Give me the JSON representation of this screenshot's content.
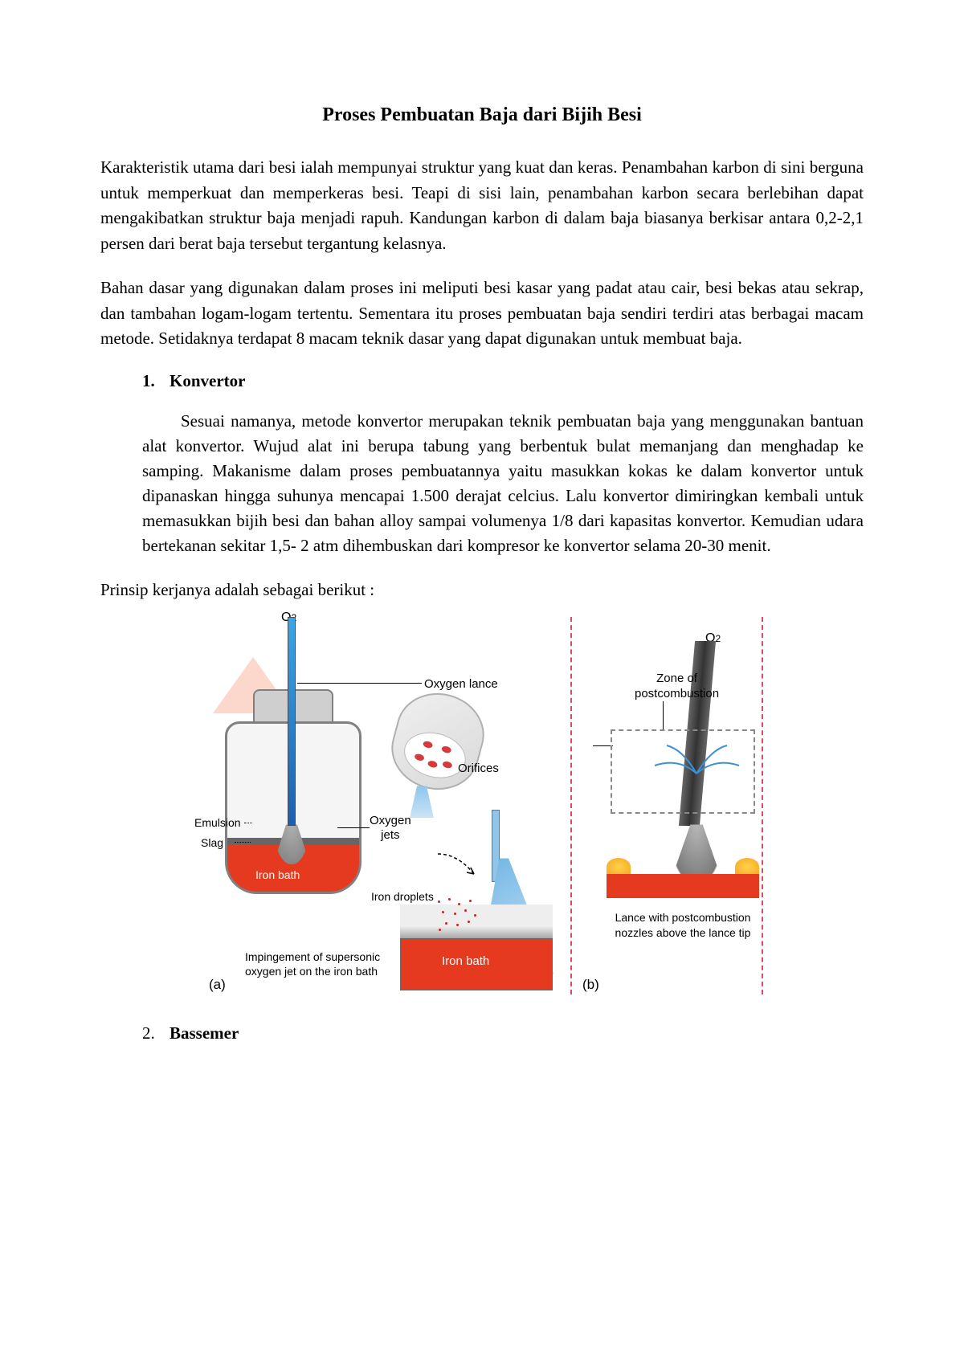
{
  "title": "Proses Pembuatan Baja dari Bijih Besi",
  "para1": "Karakteristik utama dari besi ialah mempunyai struktur yang kuat dan keras. Penambahan karbon di sini berguna untuk memperkuat dan memperkeras besi. Teapi di sisi lain, penambahan karbon secara berlebihan dapat mengakibatkan struktur baja menjadi rapuh. Kandungan karbon di dalam baja biasanya berkisar antara 0,2-2,1 persen dari berat baja tersebut tergantung kelasnya.",
  "para2": "Bahan dasar yang digunakan dalam proses ini meliputi besi kasar yang padat atau cair, besi bekas atau sekrap, dan tambahan logam-logam tertentu. Sementara itu proses pembuatan baja sendiri terdiri atas berbagai macam metode. Setidaknya terdapat 8 macam teknik dasar yang dapat digunakan untuk membuat baja.",
  "sec1": {
    "num": "1.",
    "title": "Konvertor",
    "body": "Sesuai namanya, metode konvertor merupakan teknik pembuatan baja yang menggunakan bantuan alat konvertor. Wujud alat ini berupa tabung yang berbentuk bulat memanjang dan menghadap ke samping. Makanisme dalam proses pembuatannya yaitu masukkan kokas ke dalam konvertor untuk dipanaskan hingga suhunya mencapai 1.500 derajat celcius. Lalu konvertor dimiringkan kembali untuk memasukkan bijih besi dan bahan alloy sampai volumenya 1/8 dari kapasitas konvertor. Kemudian udara bertekanan sekitar 1,5- 2 atm dihembuskan dari kompresor ke konvertor selama 20-30 menit."
  },
  "para3": "Prinsip kerjanya adalah sebagai berikut :",
  "sec2": {
    "num": "2.",
    "title": "Bassemer"
  },
  "diagram": {
    "labels": {
      "o2": "O",
      "o2sub": "2",
      "oxygen_lance": "Oxygen lance",
      "orifices": "Orifices",
      "oxygen_jets": "Oxygen\njets",
      "emulsion": "Emulsion",
      "slag": "Slag",
      "iron_bath": "Iron bath",
      "iron_droplets": "Iron droplets",
      "impingement": "Impingement of supersonic\noxygen jet on the iron bath",
      "zone": "Zone of\npostcombustion",
      "lance_caption": "Lance with postcombustion\nnozzles above the lance tip",
      "a": "(a)",
      "b": "(b)"
    },
    "colors": {
      "iron": "#e53a1f",
      "lance_blue": "#3aa6e8",
      "spray_blue": "#8ec4ec",
      "divider": "#d94a6a",
      "flame": "#ffd24a",
      "metal": "#808080"
    }
  }
}
